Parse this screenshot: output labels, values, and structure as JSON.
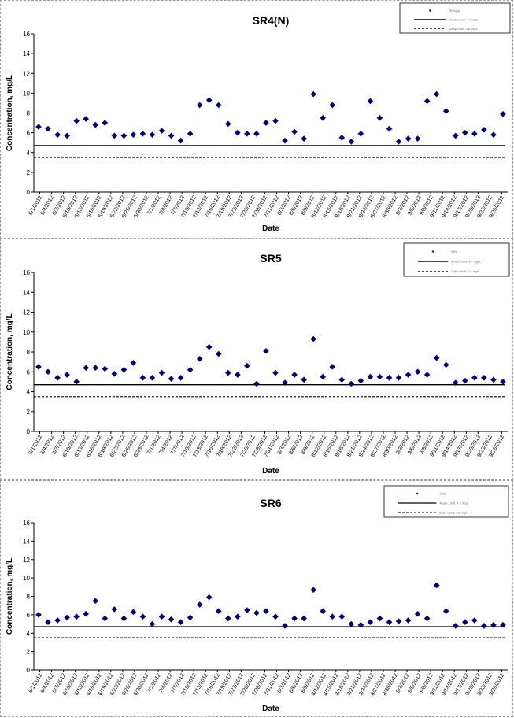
{
  "chart_data": [
    {
      "type": "scatter",
      "title": "SR4(N)",
      "xlabel": "Date",
      "ylabel": "Concentration, mg/L",
      "ylim": [
        0,
        16
      ],
      "yticks": [
        "0",
        "2",
        "4",
        "6",
        "8",
        "10",
        "12",
        "14",
        "16"
      ],
      "xticks": [
        "6/1/2012",
        "6/4/2012",
        "6/7/2012",
        "6/10/2012",
        "6/13/2012",
        "6/16/2012",
        "6/19/2012",
        "6/22/2012",
        "6/25/2012",
        "6/28/2012",
        "7/1/2012",
        "7/4/2012",
        "7/7/2012",
        "7/10/2012",
        "7/13/2012",
        "7/16/2012",
        "7/19/2012",
        "7/22/2012",
        "7/25/2012",
        "7/28/2012",
        "7/31/2012",
        "8/3/2012",
        "8/6/2012",
        "8/9/2012",
        "8/12/2012",
        "8/15/2012",
        "8/18/2012",
        "8/21/2012",
        "8/24/2012",
        "8/27/2012",
        "8/30/2012",
        "9/2/2012",
        "9/5/2012",
        "9/8/2012",
        "9/11/2012",
        "9/14/2012",
        "9/17/2012",
        "9/20/2012",
        "9/23/2012",
        "9/26/2012"
      ],
      "legend_location": "top-right",
      "legend": [
        "SR4(N)",
        "Acute Limit: 4.7 mg/L",
        "Daily Limit: 3.5 mg/L"
      ],
      "limits": [
        {
          "value": 4.7,
          "style": "solid"
        },
        {
          "value": 3.5,
          "style": "dashed"
        }
      ],
      "series": [
        {
          "values": [
            [
              0,
              6.6
            ],
            [
              1,
              6.4
            ],
            [
              2,
              5.8
            ],
            [
              3,
              5.7
            ],
            [
              4,
              7.2
            ],
            [
              5,
              7.4
            ],
            [
              6,
              6.8
            ],
            [
              7,
              7.0
            ],
            [
              8,
              5.7
            ],
            [
              9,
              5.7
            ],
            [
              10,
              5.8
            ],
            [
              11,
              5.9
            ],
            [
              12,
              5.8
            ],
            [
              13,
              6.2
            ],
            [
              14,
              5.7
            ],
            [
              15,
              5.2
            ],
            [
              16,
              5.9
            ],
            [
              17,
              8.8
            ],
            [
              18,
              9.3
            ],
            [
              19,
              8.8
            ],
            [
              20,
              6.9
            ],
            [
              21,
              6.0
            ],
            [
              22,
              5.9
            ],
            [
              23,
              5.9
            ],
            [
              24,
              7.0
            ],
            [
              25,
              7.2
            ],
            [
              26,
              5.2
            ],
            [
              27,
              6.1
            ],
            [
              28,
              5.4
            ],
            [
              29,
              9.9
            ],
            [
              30,
              7.5
            ],
            [
              31,
              8.8
            ],
            [
              32,
              5.5
            ],
            [
              33,
              5.1
            ],
            [
              34,
              5.9
            ],
            [
              35,
              9.2
            ],
            [
              36,
              7.5
            ],
            [
              37,
              6.4
            ],
            [
              38,
              5.1
            ],
            [
              39,
              5.4
            ],
            [
              40,
              5.4
            ],
            [
              41,
              9.2
            ],
            [
              42,
              9.9
            ],
            [
              43,
              8.2
            ],
            [
              44,
              5.7
            ],
            [
              45,
              6.0
            ],
            [
              46,
              5.9
            ],
            [
              47,
              6.3
            ],
            [
              48,
              5.8
            ],
            [
              49,
              7.9
            ]
          ]
        }
      ]
    },
    {
      "type": "scatter",
      "title": "SR5",
      "xlabel": "Date",
      "ylabel": "Concentration, mg/L",
      "ylim": [
        0,
        16
      ],
      "yticks": [
        "0",
        "2",
        "4",
        "6",
        "8",
        "10",
        "12",
        "14",
        "16"
      ],
      "xticks": [
        "6/1/2012",
        "6/4/2012",
        "6/7/2012",
        "6/10/2012",
        "6/13/2012",
        "6/16/2012",
        "6/19/2012",
        "6/22/2012",
        "6/25/2012",
        "6/28/2012",
        "7/1/2012",
        "7/4/2012",
        "7/7/2012",
        "7/10/2012",
        "7/13/2012",
        "7/16/2012",
        "7/19/2012",
        "7/22/2012",
        "7/25/2012",
        "7/28/2012",
        "7/31/2012",
        "8/3/2012",
        "8/6/2012",
        "8/9/2012",
        "8/12/2012",
        "8/15/2012",
        "8/18/2012",
        "8/21/2012",
        "8/24/2012",
        "8/27/2012",
        "8/30/2012",
        "9/2/2012",
        "9/5/2012",
        "9/8/2012",
        "9/11/2012",
        "9/14/2012",
        "9/17/2012",
        "9/20/2012",
        "9/23/2012",
        "9/26/2012"
      ],
      "legend_location": "top-right",
      "legend": [
        "SR5",
        "Acute Limit: 4.7 mg/L",
        "Daily Limit: 3.5 mg/L"
      ],
      "limits": [
        {
          "value": 4.7,
          "style": "solid"
        },
        {
          "value": 3.5,
          "style": "dashed"
        }
      ],
      "series": [
        {
          "values": [
            [
              0,
              6.5
            ],
            [
              1,
              6.0
            ],
            [
              2,
              5.4
            ],
            [
              3,
              5.7
            ],
            [
              4,
              5.0
            ],
            [
              5,
              6.4
            ],
            [
              6,
              6.4
            ],
            [
              7,
              6.3
            ],
            [
              8,
              5.8
            ],
            [
              9,
              6.2
            ],
            [
              10,
              6.9
            ],
            [
              11,
              5.4
            ],
            [
              12,
              5.4
            ],
            [
              13,
              5.9
            ],
            [
              14,
              5.3
            ],
            [
              15,
              5.4
            ],
            [
              16,
              6.2
            ],
            [
              17,
              7.3
            ],
            [
              18,
              8.5
            ],
            [
              19,
              7.8
            ],
            [
              20,
              5.9
            ],
            [
              21,
              5.7
            ],
            [
              22,
              6.6
            ],
            [
              23,
              4.8
            ],
            [
              24,
              8.1
            ],
            [
              25,
              5.9
            ],
            [
              26,
              4.9
            ],
            [
              27,
              5.7
            ],
            [
              28,
              5.2
            ],
            [
              29,
              9.3
            ],
            [
              30,
              5.5
            ],
            [
              31,
              6.5
            ],
            [
              32,
              5.2
            ],
            [
              33,
              4.8
            ],
            [
              34,
              5.1
            ],
            [
              35,
              5.5
            ],
            [
              36,
              5.5
            ],
            [
              37,
              5.4
            ],
            [
              38,
              5.4
            ],
            [
              39,
              5.7
            ],
            [
              40,
              6.0
            ],
            [
              41,
              5.7
            ],
            [
              42,
              7.4
            ],
            [
              43,
              6.7
            ],
            [
              44,
              4.9
            ],
            [
              45,
              5.1
            ],
            [
              46,
              5.4
            ],
            [
              47,
              5.4
            ],
            [
              48,
              5.2
            ],
            [
              49,
              5.0
            ]
          ]
        }
      ]
    },
    {
      "type": "scatter",
      "title": "SR6",
      "xlabel": "Date",
      "ylabel": "Concentration, mg/L",
      "ylim": [
        0,
        16
      ],
      "yticks": [
        "0",
        "2",
        "4",
        "6",
        "8",
        "10",
        "12",
        "14",
        "16"
      ],
      "xticks": [
        "6/1/2012",
        "6/4/2012",
        "6/7/2012",
        "6/10/2012",
        "6/13/2012",
        "6/16/2012",
        "6/19/2012",
        "6/22/2012",
        "6/25/2012",
        "6/28/2012",
        "7/1/2012",
        "7/4/2012",
        "7/7/2012",
        "7/10/2012",
        "7/13/2012",
        "7/16/2012",
        "7/19/2012",
        "7/22/2012",
        "7/25/2012",
        "7/28/2012",
        "7/31/2012",
        "8/3/2012",
        "8/6/2012",
        "8/9/2012",
        "8/12/2012",
        "8/15/2012",
        "8/18/2012",
        "8/21/2012",
        "8/24/2012",
        "8/27/2012",
        "8/30/2012",
        "9/2/2012",
        "9/5/2012",
        "9/8/2012",
        "9/11/2012",
        "9/14/2012",
        "9/17/2012",
        "9/20/2012",
        "9/23/2012",
        "9/26/2012"
      ],
      "legend_location": "top-right",
      "legend": [
        "SR6",
        "Acute Limit: 4.7 mg/L",
        "Daily Limit: 3.5 mg/L"
      ],
      "limits": [
        {
          "value": 4.7,
          "style": "solid"
        },
        {
          "value": 3.5,
          "style": "dashed"
        }
      ],
      "series": [
        {
          "values": [
            [
              0,
              6.0
            ],
            [
              1,
              5.2
            ],
            [
              2,
              5.4
            ],
            [
              3,
              5.7
            ],
            [
              4,
              5.8
            ],
            [
              5,
              6.1
            ],
            [
              6,
              7.5
            ],
            [
              7,
              5.6
            ],
            [
              8,
              6.6
            ],
            [
              9,
              5.6
            ],
            [
              10,
              6.3
            ],
            [
              11,
              5.8
            ],
            [
              12,
              5.0
            ],
            [
              13,
              5.8
            ],
            [
              14,
              5.5
            ],
            [
              15,
              5.2
            ],
            [
              16,
              5.7
            ],
            [
              17,
              7.1
            ],
            [
              18,
              7.9
            ],
            [
              19,
              6.4
            ],
            [
              20,
              5.6
            ],
            [
              21,
              5.8
            ],
            [
              22,
              6.5
            ],
            [
              23,
              6.2
            ],
            [
              24,
              6.4
            ],
            [
              25,
              5.8
            ],
            [
              26,
              4.8
            ],
            [
              27,
              5.6
            ],
            [
              28,
              5.6
            ],
            [
              29,
              8.7
            ],
            [
              30,
              6.4
            ],
            [
              31,
              5.8
            ],
            [
              32,
              5.8
            ],
            [
              33,
              5.0
            ],
            [
              34,
              4.9
            ],
            [
              35,
              5.2
            ],
            [
              36,
              5.6
            ],
            [
              37,
              5.2
            ],
            [
              38,
              5.3
            ],
            [
              39,
              5.4
            ],
            [
              40,
              6.1
            ],
            [
              41,
              5.6
            ],
            [
              42,
              9.2
            ],
            [
              43,
              6.4
            ],
            [
              44,
              4.8
            ],
            [
              45,
              5.2
            ],
            [
              46,
              5.4
            ],
            [
              47,
              4.8
            ],
            [
              48,
              4.9
            ],
            [
              49,
              4.9
            ]
          ]
        }
      ]
    }
  ]
}
